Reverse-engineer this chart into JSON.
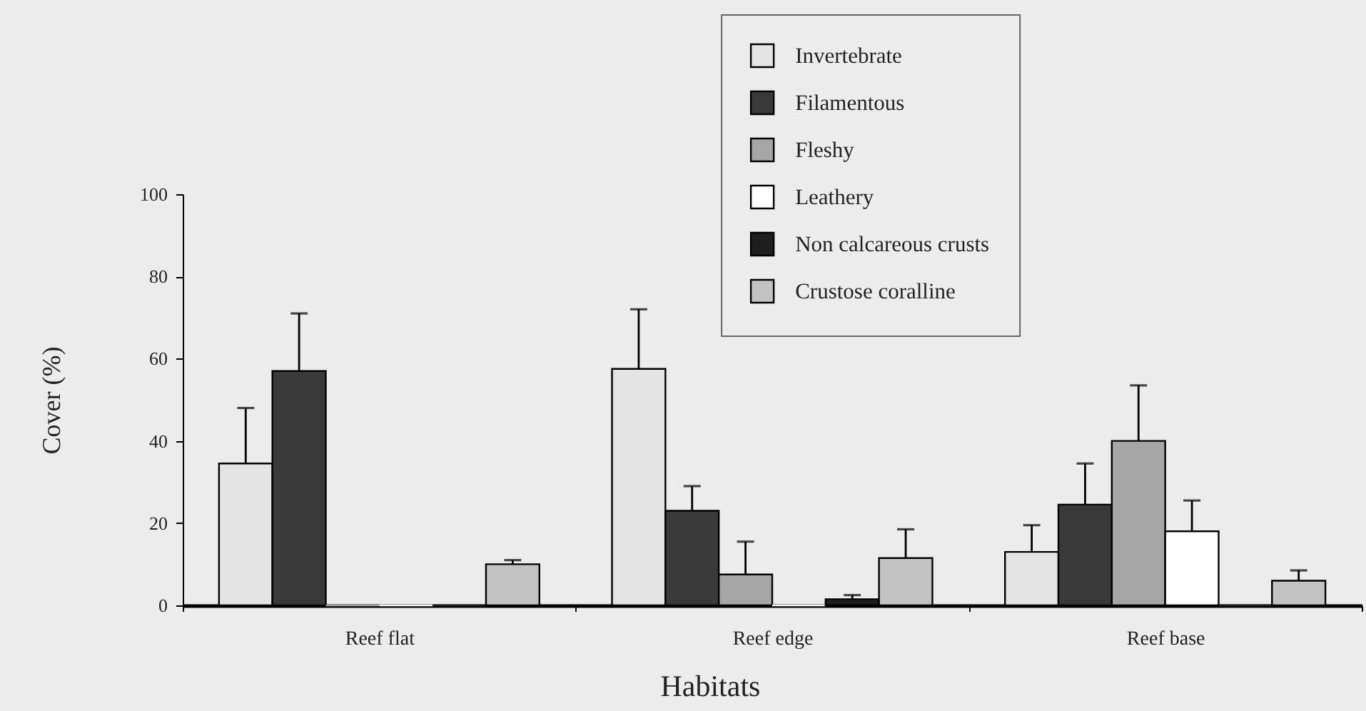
{
  "chart_data": {
    "type": "bar",
    "categories": [
      "Reef flat",
      "Reef edge",
      "Reef base"
    ],
    "xlabel": "Habitats",
    "ylabel": "Cover (%)",
    "ylim": [
      0,
      100
    ],
    "yticks": [
      0,
      20,
      40,
      60,
      80,
      100
    ],
    "grid": false,
    "legend": "top right",
    "series": [
      {
        "name": "Invertebrate",
        "color": "#e4e4e4",
        "values": [
          34.5,
          57.5,
          13
        ],
        "errors": [
          13.5,
          14.5,
          6.5
        ]
      },
      {
        "name": "Filamentous",
        "color": "#3a3a3a",
        "values": [
          57,
          23,
          24.5
        ],
        "errors": [
          14,
          6,
          10
        ]
      },
      {
        "name": "Fleshy",
        "color": "#a6a6a6",
        "values": [
          0,
          7.5,
          40
        ],
        "errors": [
          null,
          8,
          13.5
        ]
      },
      {
        "name": "Leathery",
        "color": "#ffffff",
        "values": [
          0,
          0,
          18
        ],
        "errors": [
          null,
          null,
          7.5
        ]
      },
      {
        "name": "Non calcareous crusts",
        "color": "#1e1e1e",
        "values": [
          0,
          1.5,
          0
        ],
        "errors": [
          null,
          1,
          null
        ]
      },
      {
        "name": "Crustose coralline",
        "color": "#c2c2c2",
        "values": [
          10,
          11.5,
          6
        ],
        "errors": [
          1,
          7,
          2.5
        ]
      }
    ]
  }
}
